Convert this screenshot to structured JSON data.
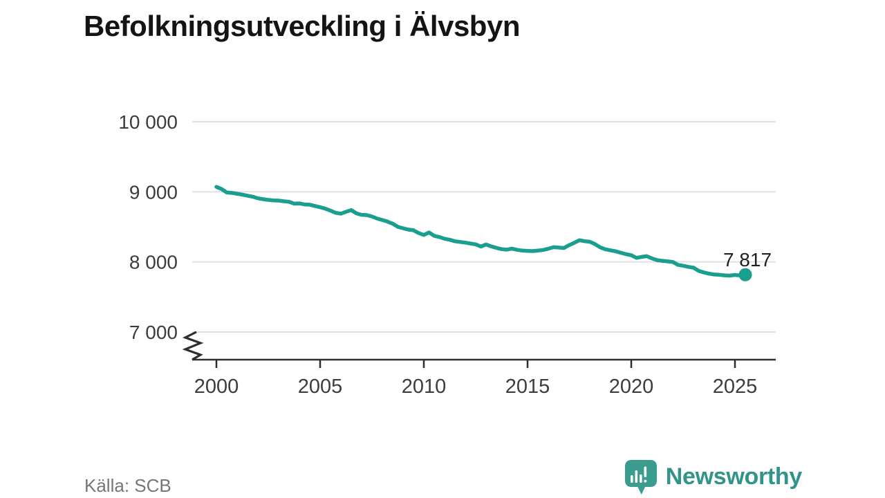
{
  "title": "Befolkningsutveckling i Älvsbyn",
  "source": "Källa: SCB",
  "brand": {
    "name": "Newsworthy"
  },
  "colors": {
    "background": "#ffffff",
    "line": "#1a9e8d",
    "grid": "#e0e0e0",
    "axis": "#2d2d2d",
    "tick_label": "#3c3c3c",
    "title": "#141414",
    "end_label": "#1f1f1f",
    "source": "#767676",
    "brand_icon": "#3a9c8f",
    "brand_text": "#30948a"
  },
  "chart_data": {
    "type": "line",
    "title": "Befolkningsutveckling i Älvsbyn",
    "xlabel": "",
    "ylabel": "",
    "legend": "none",
    "grid": "horizontal",
    "axis_break_bottom": true,
    "xlim": [
      2000,
      2027
    ],
    "ylim": [
      7000,
      10000
    ],
    "x_ticks": [
      2000,
      2005,
      2010,
      2015,
      2020,
      2025
    ],
    "y_ticks": [
      {
        "value": 10000,
        "label": "10 000"
      },
      {
        "value": 9000,
        "label": "9 000"
      },
      {
        "value": 8000,
        "label": "8 000"
      },
      {
        "value": 7000,
        "label": "7 000"
      }
    ],
    "end_label": "7 817",
    "end_value": 7817,
    "series": [
      {
        "name": "Befolkning",
        "points": [
          [
            2000.0,
            9070
          ],
          [
            2000.25,
            9040
          ],
          [
            2000.5,
            8990
          ],
          [
            2000.75,
            8985
          ],
          [
            2001.0,
            8973
          ],
          [
            2001.25,
            8960
          ],
          [
            2001.5,
            8945
          ],
          [
            2001.75,
            8930
          ],
          [
            2002.0,
            8908
          ],
          [
            2002.25,
            8895
          ],
          [
            2002.5,
            8885
          ],
          [
            2002.75,
            8878
          ],
          [
            2003.0,
            8875
          ],
          [
            2003.25,
            8865
          ],
          [
            2003.5,
            8858
          ],
          [
            2003.75,
            8832
          ],
          [
            2004.0,
            8835
          ],
          [
            2004.25,
            8820
          ],
          [
            2004.5,
            8817
          ],
          [
            2004.75,
            8798
          ],
          [
            2005.0,
            8780
          ],
          [
            2005.25,
            8760
          ],
          [
            2005.5,
            8732
          ],
          [
            2005.75,
            8700
          ],
          [
            2006.0,
            8688
          ],
          [
            2006.25,
            8715
          ],
          [
            2006.5,
            8740
          ],
          [
            2006.75,
            8692
          ],
          [
            2007.0,
            8672
          ],
          [
            2007.25,
            8668
          ],
          [
            2007.5,
            8648
          ],
          [
            2007.75,
            8618
          ],
          [
            2008.0,
            8598
          ],
          [
            2008.25,
            8575
          ],
          [
            2008.5,
            8545
          ],
          [
            2008.75,
            8500
          ],
          [
            2009.0,
            8480
          ],
          [
            2009.25,
            8462
          ],
          [
            2009.5,
            8452
          ],
          [
            2009.75,
            8412
          ],
          [
            2010.0,
            8385
          ],
          [
            2010.25,
            8420
          ],
          [
            2010.5,
            8372
          ],
          [
            2010.75,
            8355
          ],
          [
            2011.0,
            8330
          ],
          [
            2011.25,
            8315
          ],
          [
            2011.5,
            8295
          ],
          [
            2011.75,
            8285
          ],
          [
            2012.0,
            8275
          ],
          [
            2012.25,
            8262
          ],
          [
            2012.5,
            8250
          ],
          [
            2012.75,
            8220
          ],
          [
            2013.0,
            8248
          ],
          [
            2013.25,
            8222
          ],
          [
            2013.5,
            8200
          ],
          [
            2013.75,
            8182
          ],
          [
            2014.0,
            8175
          ],
          [
            2014.25,
            8190
          ],
          [
            2014.5,
            8172
          ],
          [
            2014.75,
            8162
          ],
          [
            2015.0,
            8158
          ],
          [
            2015.25,
            8155
          ],
          [
            2015.5,
            8162
          ],
          [
            2015.75,
            8170
          ],
          [
            2016.0,
            8188
          ],
          [
            2016.25,
            8210
          ],
          [
            2016.5,
            8205
          ],
          [
            2016.75,
            8198
          ],
          [
            2017.0,
            8238
          ],
          [
            2017.25,
            8272
          ],
          [
            2017.5,
            8310
          ],
          [
            2017.75,
            8296
          ],
          [
            2018.0,
            8288
          ],
          [
            2018.25,
            8254
          ],
          [
            2018.5,
            8208
          ],
          [
            2018.75,
            8180
          ],
          [
            2019.0,
            8165
          ],
          [
            2019.25,
            8152
          ],
          [
            2019.5,
            8130
          ],
          [
            2019.75,
            8110
          ],
          [
            2020.0,
            8095
          ],
          [
            2020.25,
            8058
          ],
          [
            2020.5,
            8072
          ],
          [
            2020.75,
            8082
          ],
          [
            2021.0,
            8050
          ],
          [
            2021.25,
            8025
          ],
          [
            2021.5,
            8015
          ],
          [
            2021.75,
            8008
          ],
          [
            2022.0,
            8000
          ],
          [
            2022.25,
            7958
          ],
          [
            2022.5,
            7945
          ],
          [
            2022.75,
            7930
          ],
          [
            2023.0,
            7918
          ],
          [
            2023.25,
            7872
          ],
          [
            2023.5,
            7850
          ],
          [
            2023.75,
            7832
          ],
          [
            2024.0,
            7820
          ],
          [
            2024.25,
            7816
          ],
          [
            2024.5,
            7808
          ],
          [
            2024.75,
            7804
          ],
          [
            2025.0,
            7814
          ],
          [
            2025.25,
            7806
          ],
          [
            2025.5,
            7817
          ]
        ]
      }
    ]
  }
}
